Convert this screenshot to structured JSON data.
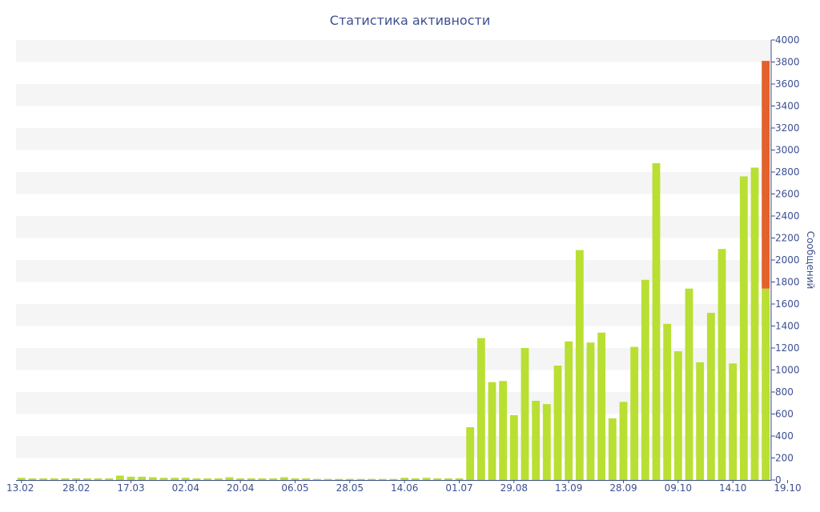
{
  "chart_data": {
    "type": "bar",
    "title": "Статистика активности",
    "ylabel": "Сообщений",
    "xlabel": "",
    "ylim": [
      0,
      4000
    ],
    "ytick_step": 200,
    "yaxis_side": "right",
    "grid": "alternating horizontal bands",
    "colors": {
      "bar": "#b9df33",
      "highlight": "#e3612b",
      "band": "#f5f5f5",
      "text": "#3d4f8f",
      "axis": "#3d4f8f"
    },
    "x_tick_labels": [
      {
        "label": "13.02",
        "index": 0
      },
      {
        "label": "28.02",
        "index": 5
      },
      {
        "label": "17.03",
        "index": 10
      },
      {
        "label": "02.04",
        "index": 15
      },
      {
        "label": "20.04",
        "index": 20
      },
      {
        "label": "06.05",
        "index": 25
      },
      {
        "label": "28.05",
        "index": 30
      },
      {
        "label": "14.06",
        "index": 35
      },
      {
        "label": "01.07",
        "index": 40
      },
      {
        "label": "29.08",
        "index": 45
      },
      {
        "label": "13.09",
        "index": 50
      },
      {
        "label": "28.09",
        "index": 55
      },
      {
        "label": "09.10",
        "index": 60
      },
      {
        "label": "14.10",
        "index": 65
      },
      {
        "label": "19.10",
        "index": 70
      }
    ],
    "series": [
      {
        "values": [
          20,
          15,
          15,
          15,
          15,
          15,
          15,
          15,
          15,
          40,
          30,
          30,
          25,
          20,
          20,
          20,
          15,
          15,
          15,
          25,
          15,
          15,
          15,
          15,
          25,
          15,
          15,
          10,
          10,
          10,
          10,
          10,
          10,
          10,
          10,
          20,
          15,
          20,
          15,
          15,
          15,
          480,
          1290,
          890,
          900,
          590,
          1200,
          720,
          690,
          1040,
          1260,
          2090,
          1250,
          1340,
          560,
          710,
          1210,
          1820,
          2880,
          1420,
          1170,
          1740,
          1070,
          1520,
          2100,
          1060,
          2760,
          2840,
          1740
        ]
      },
      {
        "values": [
          0,
          0,
          0,
          0,
          0,
          0,
          0,
          0,
          0,
          0,
          0,
          0,
          0,
          0,
          0,
          0,
          0,
          0,
          0,
          0,
          0,
          0,
          0,
          0,
          0,
          0,
          0,
          0,
          0,
          0,
          0,
          0,
          0,
          0,
          0,
          0,
          0,
          0,
          0,
          0,
          0,
          0,
          0,
          0,
          0,
          0,
          0,
          0,
          0,
          0,
          0,
          0,
          0,
          0,
          0,
          0,
          0,
          0,
          0,
          0,
          0,
          0,
          0,
          0,
          0,
          0,
          0,
          0,
          2070
        ]
      }
    ]
  }
}
